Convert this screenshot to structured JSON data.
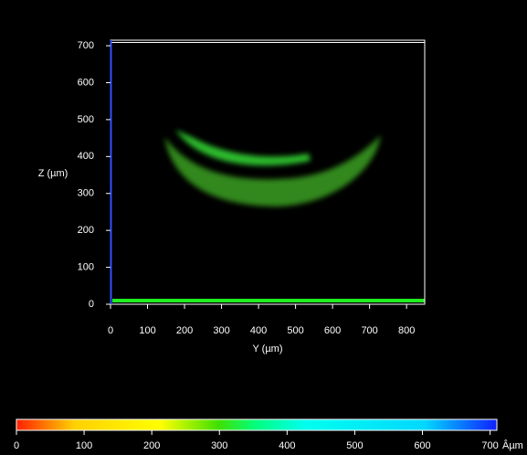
{
  "chart_data": {
    "type": "image",
    "xlabel": "Y (µm)",
    "ylabel": "Z (µm)",
    "xlim": [
      0,
      849
    ],
    "ylim": [
      0,
      715
    ],
    "xticks": [
      0,
      100,
      200,
      300,
      400,
      500,
      600,
      700,
      800
    ],
    "yticks": [
      0,
      100,
      200,
      300,
      400,
      500,
      600,
      700
    ],
    "colorbar": {
      "lim": [
        0,
        710
      ],
      "ticks": [
        0,
        100,
        200,
        300,
        400,
        500,
        600,
        700
      ],
      "unit": "Âµm"
    }
  }
}
